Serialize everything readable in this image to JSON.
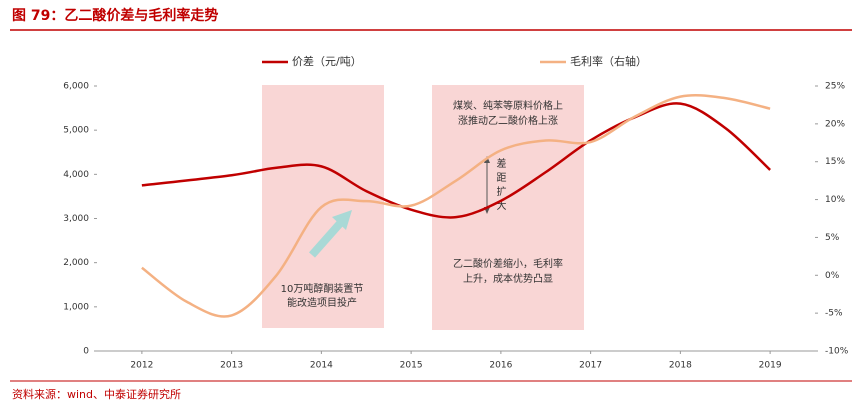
{
  "chart_data": {
    "type": "line",
    "title": "图 79：乙二酸价差与毛利率走势",
    "source": "资料来源：wind、中泰证券研究所",
    "xlim": [
      2011.5,
      2019.5
    ],
    "xticks": [
      2012,
      2013,
      2014,
      2015,
      2016,
      2017,
      2018,
      2019
    ],
    "ylim": [
      0,
      6000
    ],
    "yticks": [
      0,
      {
        "value": 1000,
        "label": "1,000"
      },
      {
        "value": 2000,
        "label": "2,000"
      },
      {
        "value": 3000,
        "label": "3,000"
      },
      {
        "value": 4000,
        "label": "4,000"
      },
      {
        "value": 5000,
        "label": "5,000"
      },
      {
        "value": 6000,
        "label": "6,000"
      }
    ],
    "y2lim": [
      -10,
      25
    ],
    "y2ticks": [
      {
        "value": -10,
        "label": "-10%"
      },
      {
        "value": -5,
        "label": "-5%"
      },
      {
        "value": 0,
        "label": "0%"
      },
      {
        "value": 5,
        "label": "5%"
      },
      {
        "value": 10,
        "label": "10%"
      },
      {
        "value": 15,
        "label": "15%"
      },
      {
        "value": 20,
        "label": "20%"
      },
      {
        "value": 25,
        "label": "25%"
      }
    ],
    "series": [
      {
        "name": "价差（元/吨）",
        "color": "#c00000",
        "x": [
          2012,
          2013,
          2013.5,
          2014,
          2014.5,
          2015,
          2015.5,
          2016,
          2016.5,
          2017,
          2017.5,
          2018,
          2018.5,
          2019
        ],
        "values": [
          3750,
          3980,
          4150,
          4180,
          3620,
          3200,
          3030,
          3400,
          4050,
          4770,
          5300,
          5600,
          5050,
          4100
        ]
      },
      {
        "name": "毛利率（右轴）",
        "color": "#f4b183",
        "axis": "y2",
        "x": [
          2012,
          2012.5,
          2013,
          2013.5,
          2014,
          2014.5,
          2015,
          2015.5,
          2016,
          2016.5,
          2017,
          2017.5,
          2018,
          2018.5,
          2019
        ],
        "values": [
          1,
          -3.5,
          -5.3,
          0,
          9,
          9.8,
          9.2,
          12.5,
          16.5,
          17.8,
          17.6,
          21,
          23.6,
          23.4,
          22
        ]
      }
    ],
    "annotations": [
      [
        "10万吨醇酮装置节",
        "能改造项目投产"
      ],
      [
        "煤炭、纯苯等原料价格上",
        "涨推动乙二酸价格上涨"
      ],
      [
        "乙二酸价差缩小，毛利率",
        "上升，成本优势凸显"
      ],
      "差距扩大"
    ]
  }
}
